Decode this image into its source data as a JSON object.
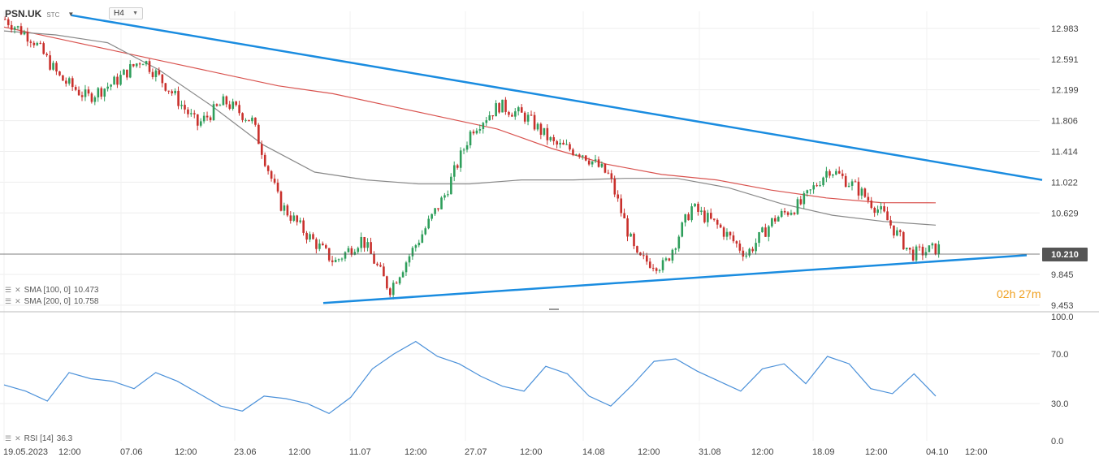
{
  "header": {
    "symbol": "PSN.UK",
    "source": "STC",
    "timeframe": "H4"
  },
  "indicators": {
    "sma100": {
      "label": "SMA [100, 0]",
      "value": "10.473",
      "color": "#888888"
    },
    "sma200": {
      "label": "SMA [200, 0]",
      "value": "10.758",
      "color": "#d9534f"
    },
    "rsi": {
      "label": "RSI [14]",
      "value": "36.3",
      "color": "#4a90d9"
    }
  },
  "timer": {
    "hours": "02",
    "h": "h",
    "minutes": "27",
    "m": "m"
  },
  "current_price": "10.210",
  "chart_data": [
    {
      "type": "candlestick",
      "title": "",
      "y_ticks": [
        "12.983",
        "12.591",
        "12.199",
        "11.806",
        "11.414",
        "11.022",
        "10.629",
        "10.210",
        "9.845",
        "9.453"
      ],
      "ylim": [
        9.41,
        13.2
      ],
      "x_tick_labels": [
        "19.05.2023",
        "12:00",
        "07.06",
        "12:00",
        "23.06",
        "12:00",
        "11.07",
        "12:00",
        "27.07",
        "12:00",
        "14.08",
        "12:00",
        "31.08",
        "12:00",
        "18.09",
        "12:00",
        "04.10",
        "12:00"
      ],
      "close_path": [
        13.1,
        12.85,
        12.35,
        12.1,
        12.3,
        12.6,
        12.2,
        11.75,
        12.05,
        11.8,
        10.75,
        10.35,
        10.0,
        10.3,
        9.65,
        10.25,
        10.85,
        11.7,
        12.0,
        11.85,
        11.5,
        11.4,
        11.1,
        10.05,
        9.95,
        10.7,
        10.45,
        10.1,
        10.55,
        10.75,
        11.2,
        10.95,
        10.6,
        10.1,
        10.18
      ],
      "trendlines": [
        {
          "name": "upper",
          "from": [
            "19.05.2023",
            13.15
          ],
          "to": [
            "beyond 04.10",
            11.05
          ],
          "color": "#1a8ce0"
        },
        {
          "name": "lower",
          "from": [
            "06.07",
            9.48
          ],
          "to": [
            "beyond 04.10",
            10.09
          ],
          "color": "#1a8ce0"
        }
      ],
      "series": [
        {
          "name": "SMA [100, 0]",
          "points": [
            12.95,
            12.9,
            12.8,
            12.45,
            12.0,
            11.5,
            11.15,
            11.05,
            11.0,
            11.0,
            11.05,
            11.05,
            11.07,
            11.07,
            10.95,
            10.75,
            10.6,
            10.52,
            10.473
          ]
        },
        {
          "name": "SMA [200, 0]",
          "points": [
            13.0,
            12.85,
            12.7,
            12.55,
            12.4,
            12.25,
            12.15,
            12.0,
            11.85,
            11.7,
            11.45,
            11.25,
            11.12,
            11.05,
            10.92,
            10.82,
            10.76,
            10.758
          ]
        }
      ]
    },
    {
      "type": "line",
      "title": "",
      "name": "RSI [14]",
      "ylim": [
        0,
        100
      ],
      "y_ticks": [
        "100.0",
        "70.0",
        "30.0",
        "0.0"
      ],
      "values": [
        45,
        40,
        32,
        55,
        50,
        48,
        42,
        55,
        48,
        38,
        28,
        24,
        36,
        34,
        30,
        22,
        35,
        58,
        70,
        80,
        68,
        62,
        52,
        44,
        40,
        60,
        54,
        36,
        28,
        45,
        64,
        66,
        56,
        48,
        40,
        58,
        62,
        46,
        68,
        62,
        42,
        38,
        54,
        36
      ]
    }
  ]
}
